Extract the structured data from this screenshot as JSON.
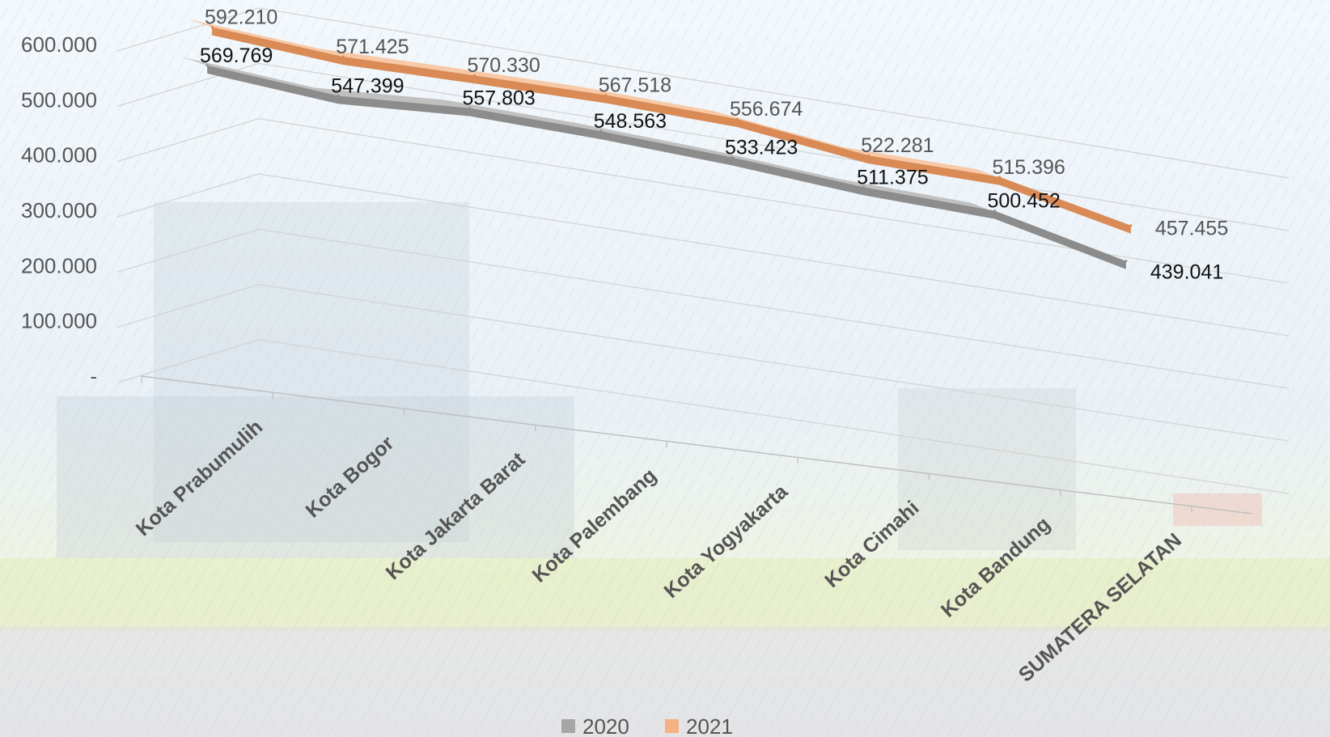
{
  "chart_data": {
    "type": "line",
    "style": "3d-ribbon",
    "categories": [
      "Kota Prabumulih",
      "Kota Bogor",
      "Kota Jakarta Barat",
      "Kota Palembang",
      "Kota Yogyakarta",
      "Kota Cimahi",
      "Kota Bandung",
      "SUMATERA SELATAN"
    ],
    "series": [
      {
        "name": "2020",
        "color": "#a6a6a6",
        "values": [
          569769,
          547399,
          557803,
          548563,
          533423,
          511375,
          500452,
          439041
        ],
        "labels": [
          "569.769",
          "547.399",
          "557.803",
          "548.563",
          "533.423",
          "511.375",
          "500.452",
          "439.041"
        ]
      },
      {
        "name": "2021",
        "color": "#f4b183",
        "values": [
          592210,
          571425,
          570330,
          567518,
          556674,
          522281,
          515396,
          457455
        ],
        "labels": [
          "592.210",
          "571.425",
          "570.330",
          "567.518",
          "556.674",
          "522.281",
          "515.396",
          "457.455"
        ]
      }
    ],
    "y_ticks": [
      "-",
      "100.000",
      "200.000",
      "300.000",
      "400.000",
      "500.000",
      "600.000"
    ],
    "ylim": [
      0,
      600000
    ],
    "grid": true,
    "legend_position": "bottom",
    "background": "faded photo of city buildings with rain overlay"
  }
}
